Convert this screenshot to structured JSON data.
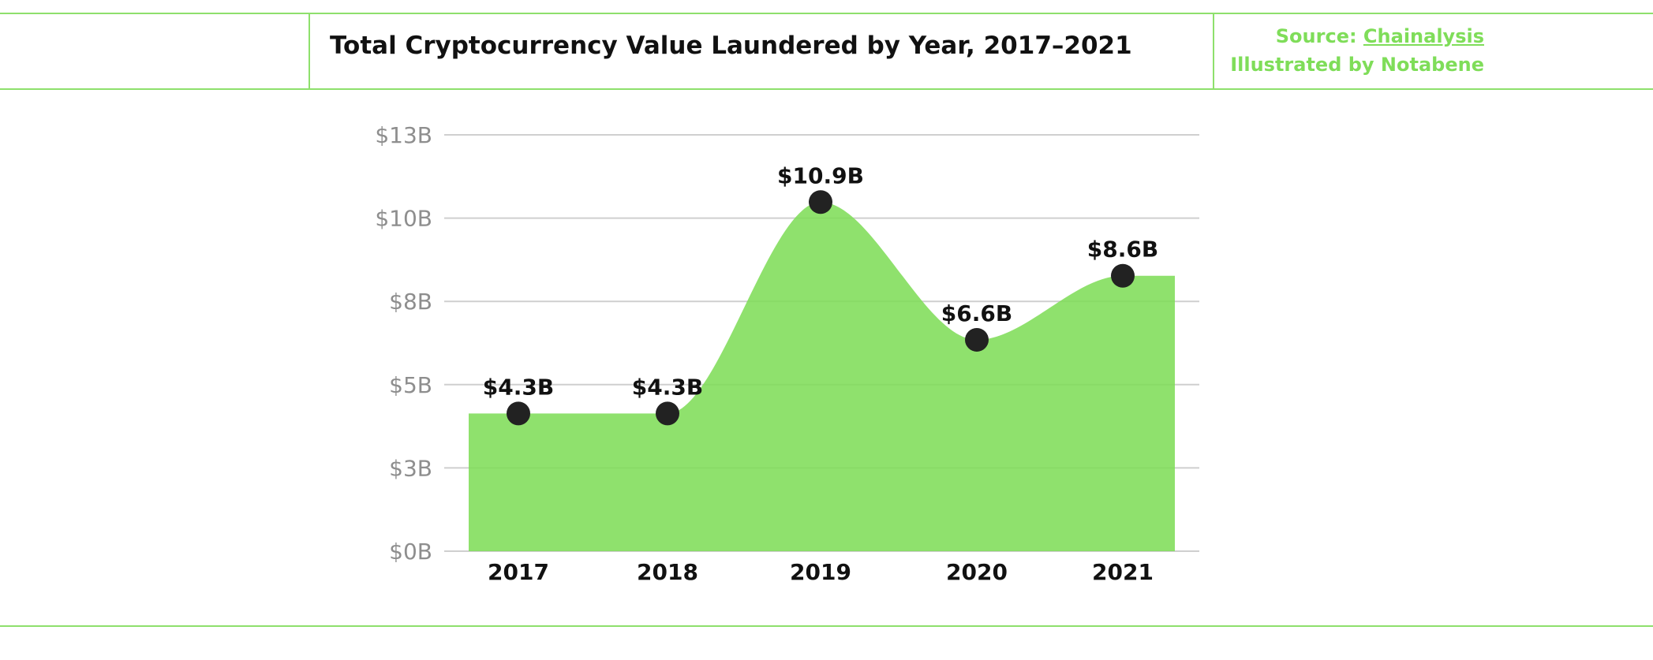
{
  "header": {
    "title": "Total Cryptocurrency Value Laundered by Year, 2017–2021",
    "source_prefix": "Source: ",
    "source_link": "Chainalysis",
    "illustrated_by": "Illustrated by Notabene"
  },
  "colors": {
    "accent": "#7fdd59",
    "area": "#7fdd59",
    "rule": "#8ee06c",
    "marker": "#222222"
  },
  "chart_data": {
    "type": "area",
    "title": "Total Cryptocurrency Value Laundered by Year, 2017–2021",
    "xlabel": "",
    "ylabel": "",
    "categories": [
      "2017",
      "2018",
      "2019",
      "2020",
      "2021"
    ],
    "values": [
      4.3,
      4.3,
      10.9,
      6.6,
      8.6
    ],
    "value_labels": [
      "$4.3B",
      "$4.3B",
      "$10.9B",
      "$6.6B",
      "$8.6B"
    ],
    "y_ticks": [
      {
        "label": "$0B",
        "value": 0
      },
      {
        "label": "$3B",
        "value": 2.6
      },
      {
        "label": "$5B",
        "value": 5.2
      },
      {
        "label": "$8B",
        "value": 7.8
      },
      {
        "label": "$10B",
        "value": 10.4
      },
      {
        "label": "$13B",
        "value": 13
      }
    ],
    "ylim": [
      0,
      13
    ],
    "grid": true,
    "legend": "none"
  }
}
